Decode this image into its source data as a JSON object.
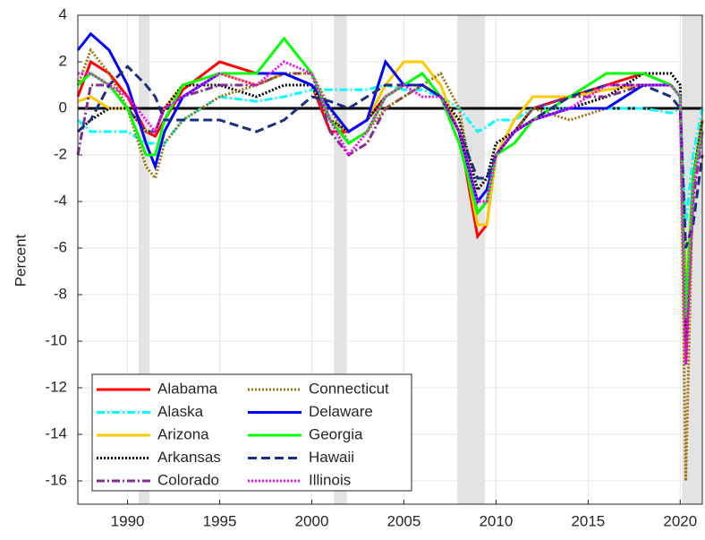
{
  "chart_data": {
    "type": "line",
    "ylabel": "Percent",
    "xlim": [
      1987.3,
      2021.2
    ],
    "xticks": [
      1990,
      1995,
      2000,
      2005,
      2010,
      2015,
      2020
    ],
    "ylim": [
      -17,
      4
    ],
    "yticks": [
      4,
      2,
      0,
      -2,
      -4,
      -6,
      -8,
      -10,
      -12,
      -14,
      -16
    ],
    "grid": true,
    "legend": "lower-left",
    "hline": 0,
    "recessions": [
      [
        1990.6,
        1991.2
      ],
      [
        2001.2,
        2001.9
      ],
      [
        2007.9,
        2009.4
      ],
      [
        2020.1,
        2021.2
      ]
    ],
    "x": [
      1987.3,
      1988,
      1989,
      1990,
      1991,
      1991.5,
      1992,
      1993,
      1995,
      1997,
      1998.5,
      2000,
      2001,
      2002,
      2003,
      2004,
      2005,
      2006,
      2007,
      2008,
      2009,
      2009.5,
      2010,
      2011,
      2012,
      2014,
      2016,
      2018,
      2019.5,
      2020,
      2020.3,
      2020.7,
      2021.2
    ],
    "series": [
      {
        "name": "Alabama",
        "color": "#ff0000",
        "dash": "solid",
        "values": [
          0.5,
          2,
          1.5,
          0.5,
          -1,
          -1.2,
          -0.5,
          0.8,
          2,
          1.5,
          1.5,
          1,
          -1,
          -1,
          -0.5,
          0.5,
          1,
          1,
          0.5,
          -1,
          -5.5,
          -5,
          -2,
          -1,
          0,
          0.5,
          1,
          1.5,
          1,
          0.5,
          -11,
          -3,
          -0.5
        ]
      },
      {
        "name": "Alaska",
        "color": "#00ffff",
        "dash": "dashdot",
        "values": [
          -0.5,
          -1,
          -1,
          -1,
          -1.5,
          -1.5,
          -1.5,
          -0.5,
          0.5,
          0.3,
          0.5,
          0.8,
          0.8,
          0.8,
          0.8,
          1,
          0.8,
          0.8,
          0.5,
          0,
          -1,
          -0.8,
          -0.5,
          -0.5,
          0,
          0,
          0,
          0,
          -0.2,
          0,
          -5,
          -2,
          0
        ]
      },
      {
        "name": "Arizona",
        "color": "#ffc800",
        "dash": "solid",
        "values": [
          0.3,
          0.5,
          0,
          0,
          -1,
          -1,
          0,
          1,
          1.5,
          1,
          1.5,
          1,
          -0.5,
          -1,
          -0.5,
          1,
          2,
          2,
          1,
          -1,
          -5,
          -5,
          -2,
          -0.5,
          0.5,
          0.5,
          0.8,
          1,
          1,
          0.5,
          -8,
          -3,
          -0.5
        ]
      },
      {
        "name": "Arkansas",
        "color": "#000000",
        "dash": "dotted",
        "values": [
          -1,
          -0.5,
          0,
          0,
          -1,
          -1,
          0,
          1,
          1,
          0.5,
          1,
          1,
          -0.5,
          -1,
          -0.5,
          0.5,
          1,
          1,
          0.5,
          -0.5,
          -3.5,
          -3,
          -1.5,
          -1,
          0,
          0,
          0.5,
          1.5,
          1.5,
          1,
          -10,
          -3,
          -0.5
        ]
      },
      {
        "name": "Colorado",
        "color": "#7e2f8e",
        "dash": "dashdot",
        "values": [
          -2,
          1,
          1,
          0,
          -1,
          -1,
          0,
          0.5,
          1,
          1,
          1.5,
          1.5,
          -1,
          -2,
          -1.5,
          0,
          0.5,
          1,
          0.5,
          -1,
          -4.5,
          -4,
          -2,
          -1,
          0,
          0.5,
          0.5,
          1,
          1,
          0.5,
          -11,
          -4,
          -1
        ]
      },
      {
        "name": "Connecticut",
        "color": "#a0700a",
        "dash": "dotted",
        "values": [
          1,
          2.5,
          1.5,
          0,
          -2.5,
          -3,
          -1.5,
          -0.5,
          0.5,
          1,
          1.5,
          1.5,
          0,
          -1.5,
          -1,
          0,
          0.5,
          1,
          1.5,
          0,
          -4.5,
          -4,
          -2,
          -1,
          0,
          -0.5,
          0,
          1,
          1,
          0.5,
          -16,
          -3,
          -0.5
        ]
      },
      {
        "name": "Delaware",
        "color": "#0000ff",
        "dash": "solid",
        "values": [
          2.5,
          3.2,
          2.5,
          1,
          -1.5,
          -2.5,
          -1,
          0.5,
          1.5,
          1.5,
          1.5,
          1,
          0,
          -1,
          -0.5,
          2,
          1,
          1,
          0.5,
          -1,
          -4,
          -3.5,
          -2,
          -1,
          -0.5,
          0,
          0,
          1,
          1,
          0.5,
          -9,
          -3,
          -1
        ]
      },
      {
        "name": "Georgia",
        "color": "#00ff00",
        "dash": "solid",
        "values": [
          1,
          1.5,
          1,
          0,
          -2,
          -2,
          -0.5,
          1,
          1.5,
          1.5,
          3,
          1.5,
          -0.5,
          -1.5,
          -1,
          0.5,
          1,
          1.5,
          0.5,
          -1.5,
          -4.5,
          -4,
          -2,
          -1.5,
          -0.5,
          0.5,
          1.5,
          1.5,
          1,
          0.5,
          -9,
          -3,
          -1
        ]
      },
      {
        "name": "Hawaii",
        "color": "#1a2f80",
        "dash": "dashed",
        "values": [
          -1,
          -0.5,
          1,
          1.8,
          1,
          0.5,
          -0.5,
          -0.5,
          -0.5,
          -1,
          -0.5,
          0.5,
          0.3,
          0,
          0.5,
          1,
          1,
          1,
          0.5,
          -1,
          -3,
          -3,
          -2,
          -1,
          -0.5,
          0.5,
          1,
          1,
          0.5,
          0,
          -6,
          -5,
          -2
        ]
      },
      {
        "name": "Illinois",
        "color": "#ff00ff",
        "dash": "dotted",
        "values": [
          1.5,
          1.5,
          1,
          0.5,
          -0.5,
          -1,
          0,
          0.5,
          1.5,
          1,
          2,
          1.5,
          -0.5,
          -2,
          -1,
          0.5,
          1,
          0.5,
          0.5,
          -1,
          -4,
          -4,
          -2,
          -1,
          -0.5,
          0,
          1,
          1,
          1,
          0.5,
          -11,
          -3.5,
          -1
        ]
      }
    ]
  }
}
